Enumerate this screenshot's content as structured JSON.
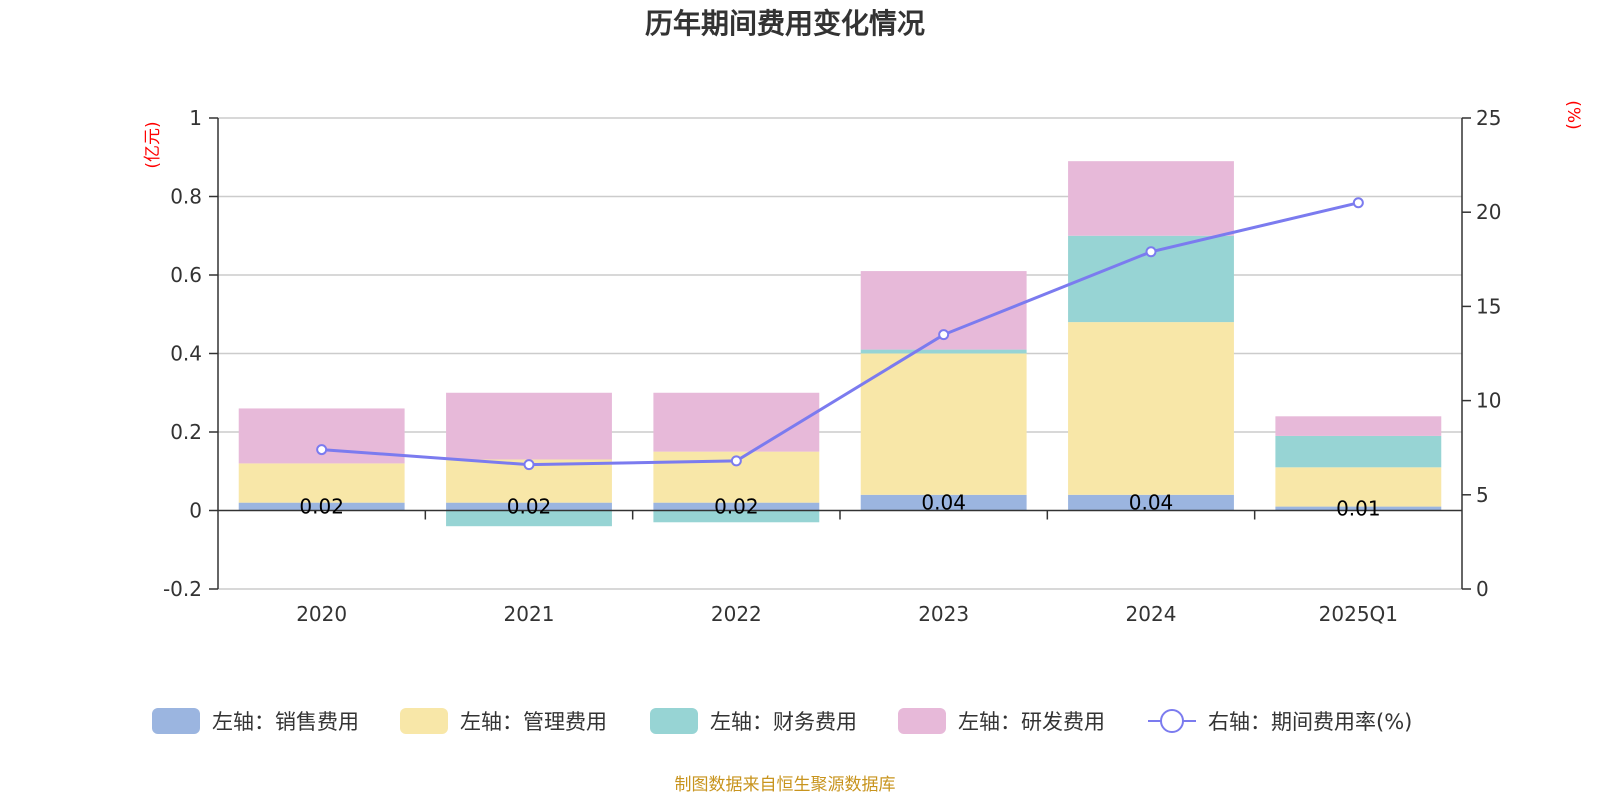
{
  "chart_data": {
    "type": "bar",
    "stacked": true,
    "title": "历年期间费用变化情况",
    "categories": [
      "2020",
      "2021",
      "2022",
      "2023",
      "2024",
      "2025Q1"
    ],
    "y_left": {
      "unit": "(亿元)",
      "ylim": [
        -0.2,
        1
      ],
      "ticks": [
        "1",
        "0.8",
        "0.6",
        "0.4",
        "0.2",
        "0",
        "-0.2"
      ],
      "tick_values": [
        1,
        0.8,
        0.6,
        0.4,
        0.2,
        0,
        -0.2
      ]
    },
    "y_right": {
      "unit": "(%)",
      "ylim": [
        0,
        25
      ],
      "ticks": [
        "25",
        "20",
        "15",
        "10",
        "5",
        "0"
      ],
      "tick_values": [
        25,
        20,
        15,
        10,
        5,
        0
      ]
    },
    "series": [
      {
        "name": "左轴：销售费用",
        "color": "#9bb5e0",
        "values": [
          0.02,
          0.02,
          0.02,
          0.04,
          0.04,
          0.01
        ],
        "labels": [
          "0.02",
          "0.02",
          "0.02",
          "0.04",
          "0.04",
          "0.01"
        ]
      },
      {
        "name": "左轴：管理费用",
        "color": "#f8e7a8",
        "values": [
          0.1,
          0.11,
          0.13,
          0.36,
          0.44,
          0.1
        ]
      },
      {
        "name": "左轴：财务费用",
        "color": "#97d4d4",
        "values": [
          0.0,
          -0.04,
          -0.03,
          0.01,
          0.22,
          0.08
        ]
      },
      {
        "name": "左轴：研发费用",
        "color": "#e7b9d9",
        "values": [
          0.14,
          0.17,
          0.15,
          0.2,
          0.19,
          0.05
        ]
      }
    ],
    "line_series": {
      "name": "右轴：期间费用率(%)",
      "color": "#7b7bef",
      "axis": "right",
      "values": [
        7.4,
        6.6,
        6.8,
        13.5,
        17.9,
        20.5
      ]
    },
    "grid": true,
    "legend_position": "bottom",
    "source": "制图数据来自恒生聚源数据库"
  }
}
